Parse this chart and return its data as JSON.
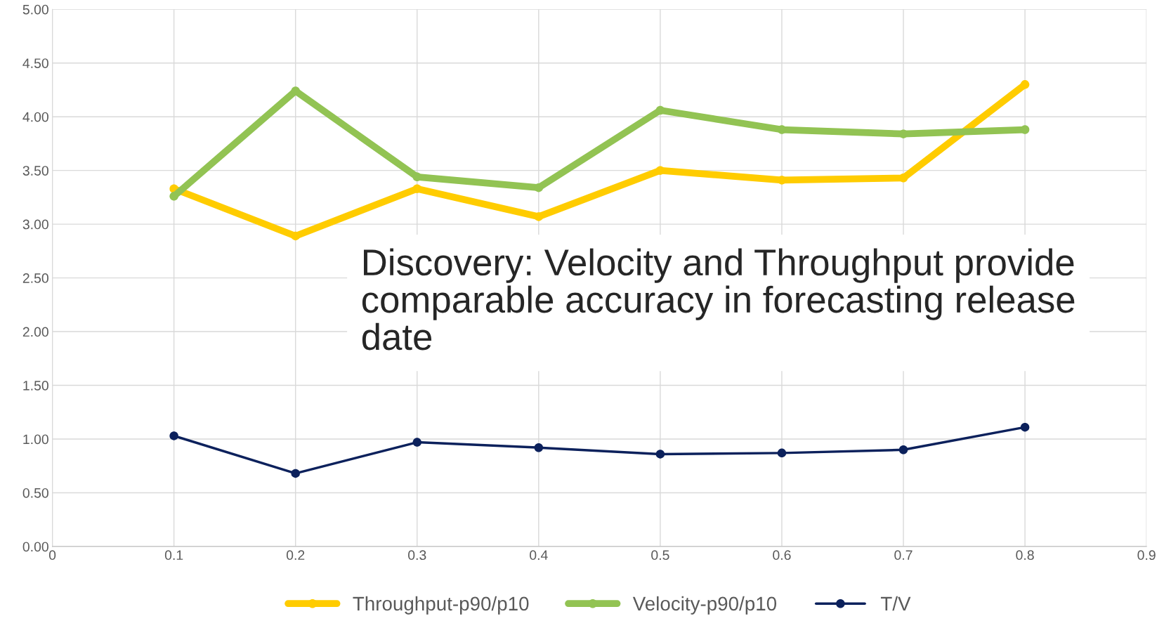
{
  "chart_data": {
    "type": "line",
    "x": [
      0.1,
      0.2,
      0.3,
      0.4,
      0.5,
      0.6,
      0.7,
      0.8
    ],
    "series": [
      {
        "name": "Throughput-p90/p10",
        "color": "#ffcc00",
        "values": [
          3.33,
          2.89,
          3.33,
          3.07,
          3.5,
          3.41,
          3.43,
          4.3
        ]
      },
      {
        "name": "Velocity-p90/p10",
        "color": "#92c353",
        "values": [
          3.26,
          4.24,
          3.44,
          3.34,
          4.06,
          3.88,
          3.84,
          3.88
        ]
      },
      {
        "name": "T/V",
        "color": "#0c215c",
        "values": [
          1.03,
          0.68,
          0.97,
          0.92,
          0.86,
          0.87,
          0.9,
          1.11
        ]
      }
    ],
    "xlim": [
      0,
      0.9
    ],
    "xticks": [
      0,
      0.1,
      0.2,
      0.3,
      0.4,
      0.5,
      0.6,
      0.7,
      0.8,
      0.9
    ],
    "ylim": [
      0,
      5
    ],
    "yticks": [
      {
        "value": 0,
        "label": "0.00"
      },
      {
        "value": 0.5,
        "label": "0.50"
      },
      {
        "value": 1,
        "label": "1.00"
      },
      {
        "value": 1.5,
        "label": "1.50"
      },
      {
        "value": 2,
        "label": "2.00"
      },
      {
        "value": 2.5,
        "label": "2.50"
      },
      {
        "value": 3,
        "label": "3.00"
      },
      {
        "value": 3.5,
        "label": "3.50"
      },
      {
        "value": 4,
        "label": "4.00"
      },
      {
        "value": 4.5,
        "label": "4.50"
      },
      {
        "value": 5,
        "label": "5.00"
      }
    ],
    "annotations": [
      "Discovery: Velocity and Throughput provide comparable accuracy in forecasting release date"
    ],
    "grid": true,
    "legend": "bottom",
    "marker": "circle",
    "line_style": "solid"
  }
}
